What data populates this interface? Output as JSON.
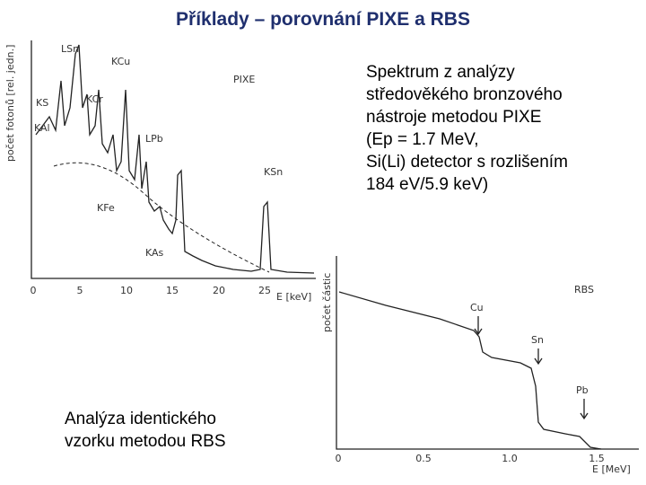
{
  "title": "Příklady – porovnání PIXE a RBS",
  "pixe_description": [
    "Spektrum z analýzy",
    "středověkého bronzového",
    "nástroje metodou PIXE",
    "(Ep = 1.7 MeV,",
    "Si(Li) detector s rozlišením",
    "184 eV/5.9 keV)"
  ],
  "rbs_description": [
    "Analýza identického",
    "vzorku metodou RBS"
  ],
  "pixe_plot": {
    "y_label": "počet fotonů [rel. jedn.]",
    "x_label": "E [keV]",
    "panel_label": "PIXE",
    "x_ticks": [
      "0",
      "5",
      "10",
      "15",
      "20",
      "25"
    ],
    "peak_labels": [
      "LSn",
      "KCu",
      "KS",
      "KCr",
      "KAl",
      "LPb",
      "KSn",
      "KFe",
      "KAs"
    ]
  },
  "rbs_plot": {
    "y_label": "počet částic",
    "x_label": "E [MeV]",
    "panel_label": "RBS",
    "x_ticks": [
      "0",
      "0.5",
      "1.0",
      "1.5"
    ],
    "peak_labels": [
      "Cu",
      "Sn",
      "Pb"
    ]
  }
}
